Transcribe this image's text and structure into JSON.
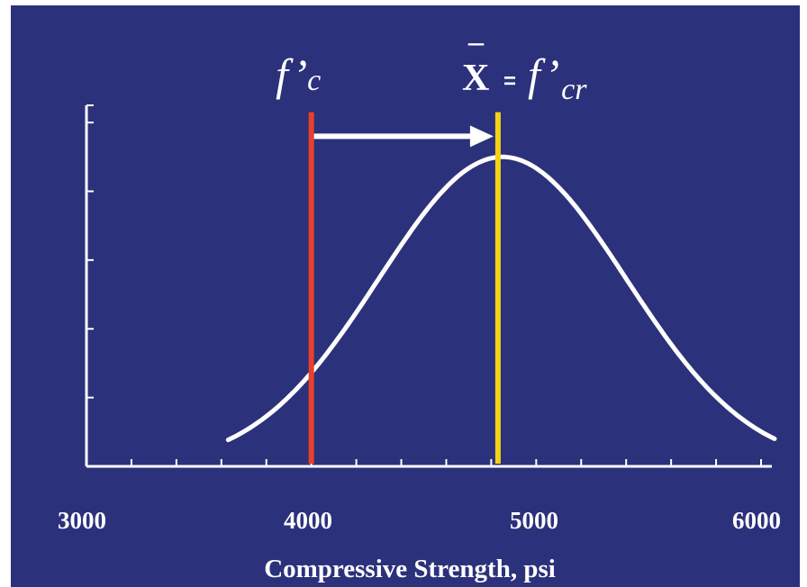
{
  "colors": {
    "background": "#2c317b",
    "curve": "#ffffff",
    "axis": "#ffffff",
    "fc_line": "#e8402a",
    "fcr_line": "#f7d117",
    "arrow": "#ffffff",
    "text": "#ffffff"
  },
  "chart_data": {
    "type": "line",
    "title": "",
    "xlabel": "Compressive Strength, psi",
    "ylabel": "",
    "xlim": [
      3000,
      6000
    ],
    "ylim": [
      0,
      1.05
    ],
    "x_ticks": [
      3000,
      4000,
      5000,
      6000
    ],
    "x_tick_labels": [
      "3000",
      "4000",
      "5000",
      "6000"
    ],
    "x_minor_ticks": [
      3200,
      3400,
      3600,
      3800,
      4200,
      4400,
      4600,
      4800,
      5200,
      5400,
      5600,
      5800
    ],
    "y_ticks": [
      0.2,
      0.4,
      0.6,
      0.8,
      1.0
    ],
    "grid": false,
    "legend": "none",
    "series": [
      {
        "style": "normal-distribution-curve",
        "mean": 4850,
        "sd": 550,
        "x_range": [
          3630,
          6060
        ],
        "peak": 0.9
      }
    ],
    "vertical_lines": [
      {
        "x": 4000,
        "y_top": 1.03,
        "color_key": "fc_line"
      },
      {
        "x": 4830,
        "y_top": 1.03,
        "color_key": "fcr_line"
      }
    ],
    "arrow": {
      "from_x": 4000,
      "to_x": 4810,
      "y": 0.96
    },
    "annotations": {
      "fc": {
        "symbol": "f’",
        "subscript": "c"
      },
      "fcr": {
        "xbar_letter": "X",
        "xbar_overline": "_",
        "equals": "=",
        "symbol": "f’",
        "subscript": "cr"
      }
    }
  }
}
